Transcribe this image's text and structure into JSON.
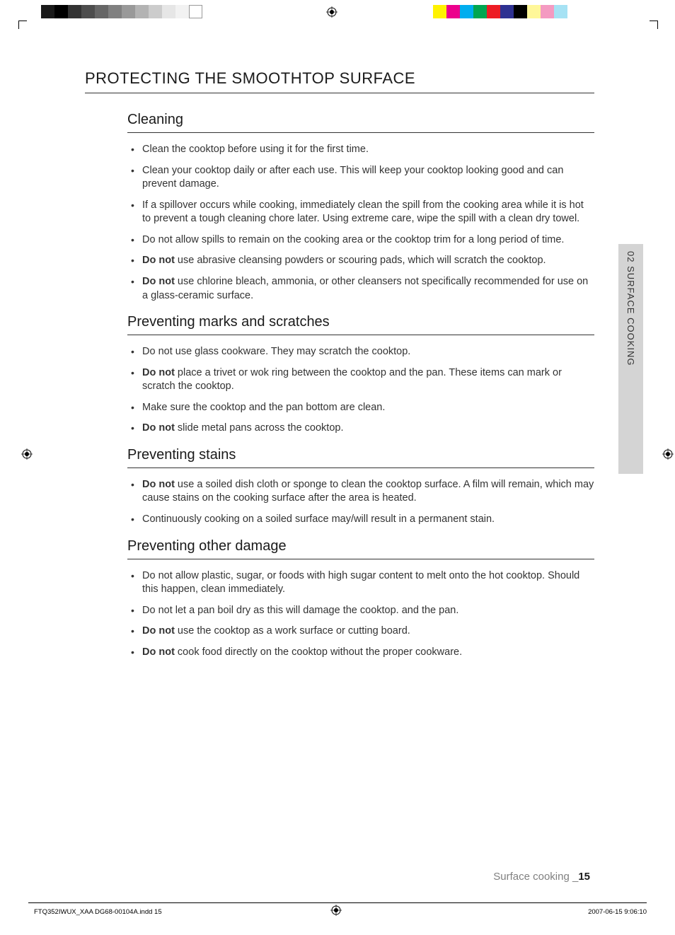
{
  "mainTitle": "PROTECTING THE SMOOTHTOP SURFACE",
  "sideTab": "02  SURFACE COOKING",
  "sections": [
    {
      "heading": "Cleaning",
      "items": [
        {
          "pre": "",
          "bold": "",
          "text": "Clean the cooktop before using it for the first time."
        },
        {
          "pre": "",
          "bold": "",
          "text": "Clean your cooktop daily or after each use. This will keep your cooktop looking good and can prevent damage."
        },
        {
          "pre": "",
          "bold": "",
          "text": "If a spillover occurs while cooking, immediately clean the spill from the cooking area while it is hot to prevent a tough cleaning chore later. Using extreme care, wipe the spill with a clean dry towel."
        },
        {
          "pre": "",
          "bold": "",
          "text": "Do not allow spills to remain on the cooking area or the cooktop trim for a long period of time."
        },
        {
          "pre": "",
          "bold": "Do not",
          "text": " use abrasive cleansing powders or scouring pads, which will scratch the cooktop."
        },
        {
          "pre": "",
          "bold": "Do not",
          "text": " use chlorine bleach, ammonia, or other cleansers not specifically recommended for use on a glass-ceramic surface."
        }
      ]
    },
    {
      "heading": "Preventing marks and scratches",
      "items": [
        {
          "pre": "",
          "bold": "",
          "text": "Do not use glass cookware. They may scratch the cooktop."
        },
        {
          "pre": "",
          "bold": "Do not",
          "text": " place a trivet or wok ring between the cooktop and the pan. These items can mark or scratch the cooktop."
        },
        {
          "pre": "",
          "bold": "",
          "text": "Make sure the cooktop and the pan bottom are clean."
        },
        {
          "pre": "",
          "bold": "Do not",
          "text": " slide metal pans across the cooktop."
        }
      ]
    },
    {
      "heading": "Preventing stains",
      "items": [
        {
          "pre": "",
          "bold": "Do not",
          "text": " use a soiled dish cloth or sponge to clean the cooktop surface. A film will remain, which may cause stains on the cooking surface after the area is heated."
        },
        {
          "pre": "",
          "bold": "",
          "text": "Continuously cooking on a soiled surface may/will result in a permanent stain."
        }
      ]
    },
    {
      "heading": "Preventing other damage",
      "items": [
        {
          "pre": "",
          "bold": "",
          "text": "Do not allow plastic, sugar, or foods with high sugar content to melt onto the hot cooktop. Should this happen, clean immediately."
        },
        {
          "pre": "",
          "bold": "",
          "text": "Do not let a pan boil dry as this will damage the cooktop. and the pan."
        },
        {
          "pre": "",
          "bold": "Do not",
          "text": " use the cooktop as a work surface or cutting board."
        },
        {
          "pre": "",
          "bold": "Do not",
          "text": " cook food directly on the cooktop without the proper cookware."
        }
      ]
    }
  ],
  "footerSection": "Surface cooking _",
  "footerPage": "15",
  "footerFile": "FTQ352IWUX_XAA DG68-00104A.indd   15",
  "footerDate": "2007-06-15     9:06:10",
  "graySquares": [
    "#1a1a1a",
    "#000000",
    "#333333",
    "#4d4d4d",
    "#666666",
    "#808080",
    "#999999",
    "#b3b3b3",
    "#cccccc",
    "#e6e6e6",
    "#f2f2f2",
    "#ffffff"
  ],
  "colorSquares": [
    "#fff200",
    "#ec008c",
    "#00aeef",
    "#00a651",
    "#ed1c24",
    "#2e3192",
    "#000000",
    "#fff799",
    "#f49ac1",
    "#a6e2f4"
  ]
}
